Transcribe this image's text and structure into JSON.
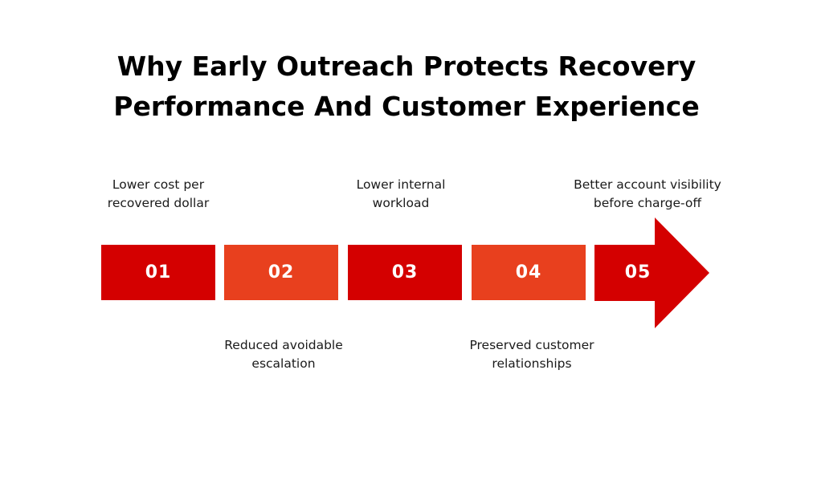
{
  "title": {
    "line1": "Why Early Outreach Protects Recovery",
    "line2": "Performance And Customer Experience"
  },
  "colors": {
    "dark_red": "#D40000",
    "orange_red": "#E8401E"
  },
  "steps": [
    {
      "number": "01",
      "label_line1": "Lower cost per",
      "label_line2": "recovered dollar",
      "position": "above"
    },
    {
      "number": "02",
      "label_line1": "Reduced avoidable",
      "label_line2": "escalation",
      "position": "below"
    },
    {
      "number": "03",
      "label_line1": "Lower internal",
      "label_line2": "workload",
      "position": "above"
    },
    {
      "number": "04",
      "label_line1": "Preserved customer",
      "label_line2": "relationships",
      "position": "below"
    },
    {
      "number": "05",
      "label_line1": "Better account visibility",
      "label_line2": "before charge-off",
      "position": "above"
    }
  ]
}
